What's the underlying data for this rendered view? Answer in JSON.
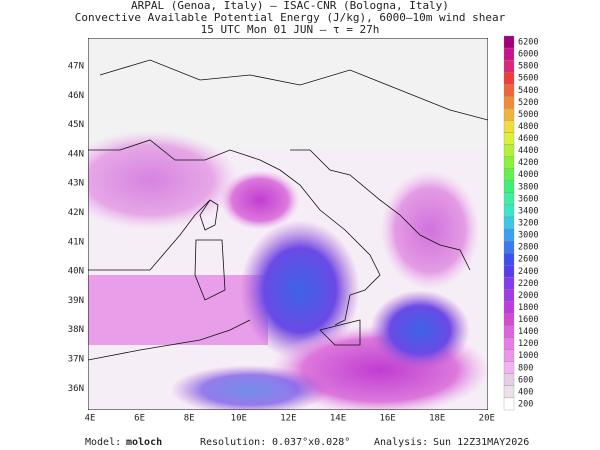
{
  "header": {
    "lines": [
      "ARPAL (Genoa, Italy)  –  ISAC-CNR (Bologna, Italy)",
      "Convective Available Potential Energy (J/kg), 6000–10m wind shear",
      "15 UTC Mon 01 JUN  –  τ = 27h"
    ]
  },
  "map": {
    "latitudes": [
      "47N",
      "46N",
      "45N",
      "44N",
      "43N",
      "42N",
      "41N",
      "40N",
      "39N",
      "38N",
      "37N",
      "36N"
    ],
    "longitudes": [
      "4E",
      "6E",
      "8E",
      "10E",
      "12E",
      "14E",
      "16E",
      "18E",
      "20E"
    ]
  },
  "colorbar": {
    "levels": [
      6200,
      6000,
      5800,
      5600,
      5400,
      5200,
      5000,
      4800,
      4600,
      4400,
      4200,
      4000,
      3800,
      3600,
      3400,
      3200,
      3000,
      2800,
      2600,
      2400,
      2200,
      2000,
      1800,
      1600,
      1400,
      1200,
      1000,
      800,
      600,
      400,
      200
    ],
    "colors": [
      "#a0007a",
      "#c8148c",
      "#dc2878",
      "#f03c3c",
      "#f0643c",
      "#f08c3c",
      "#f0b43c",
      "#f0dc3c",
      "#dcf03c",
      "#b4f03c",
      "#8cf03c",
      "#64f050",
      "#3cf078",
      "#3cf0a0",
      "#3ce6c8",
      "#3cc8e6",
      "#3ca0f0",
      "#3c78f0",
      "#3c50f0",
      "#5a3cf0",
      "#823cf0",
      "#a03ce6",
      "#be3cdc",
      "#d24bd2",
      "#dc64dc",
      "#e67de6",
      "#eb96eb",
      "#f0b4f0",
      "#e6cde6",
      "#ebe1eb",
      "#ffffff"
    ]
  },
  "footer": {
    "model_label": "Model:",
    "model": "moloch",
    "resolution_label": "Resolution:",
    "resolution": "0.037°x0.028°",
    "analysis_label": "Analysis:",
    "analysis": "Sun 12Z31MAY2026"
  }
}
